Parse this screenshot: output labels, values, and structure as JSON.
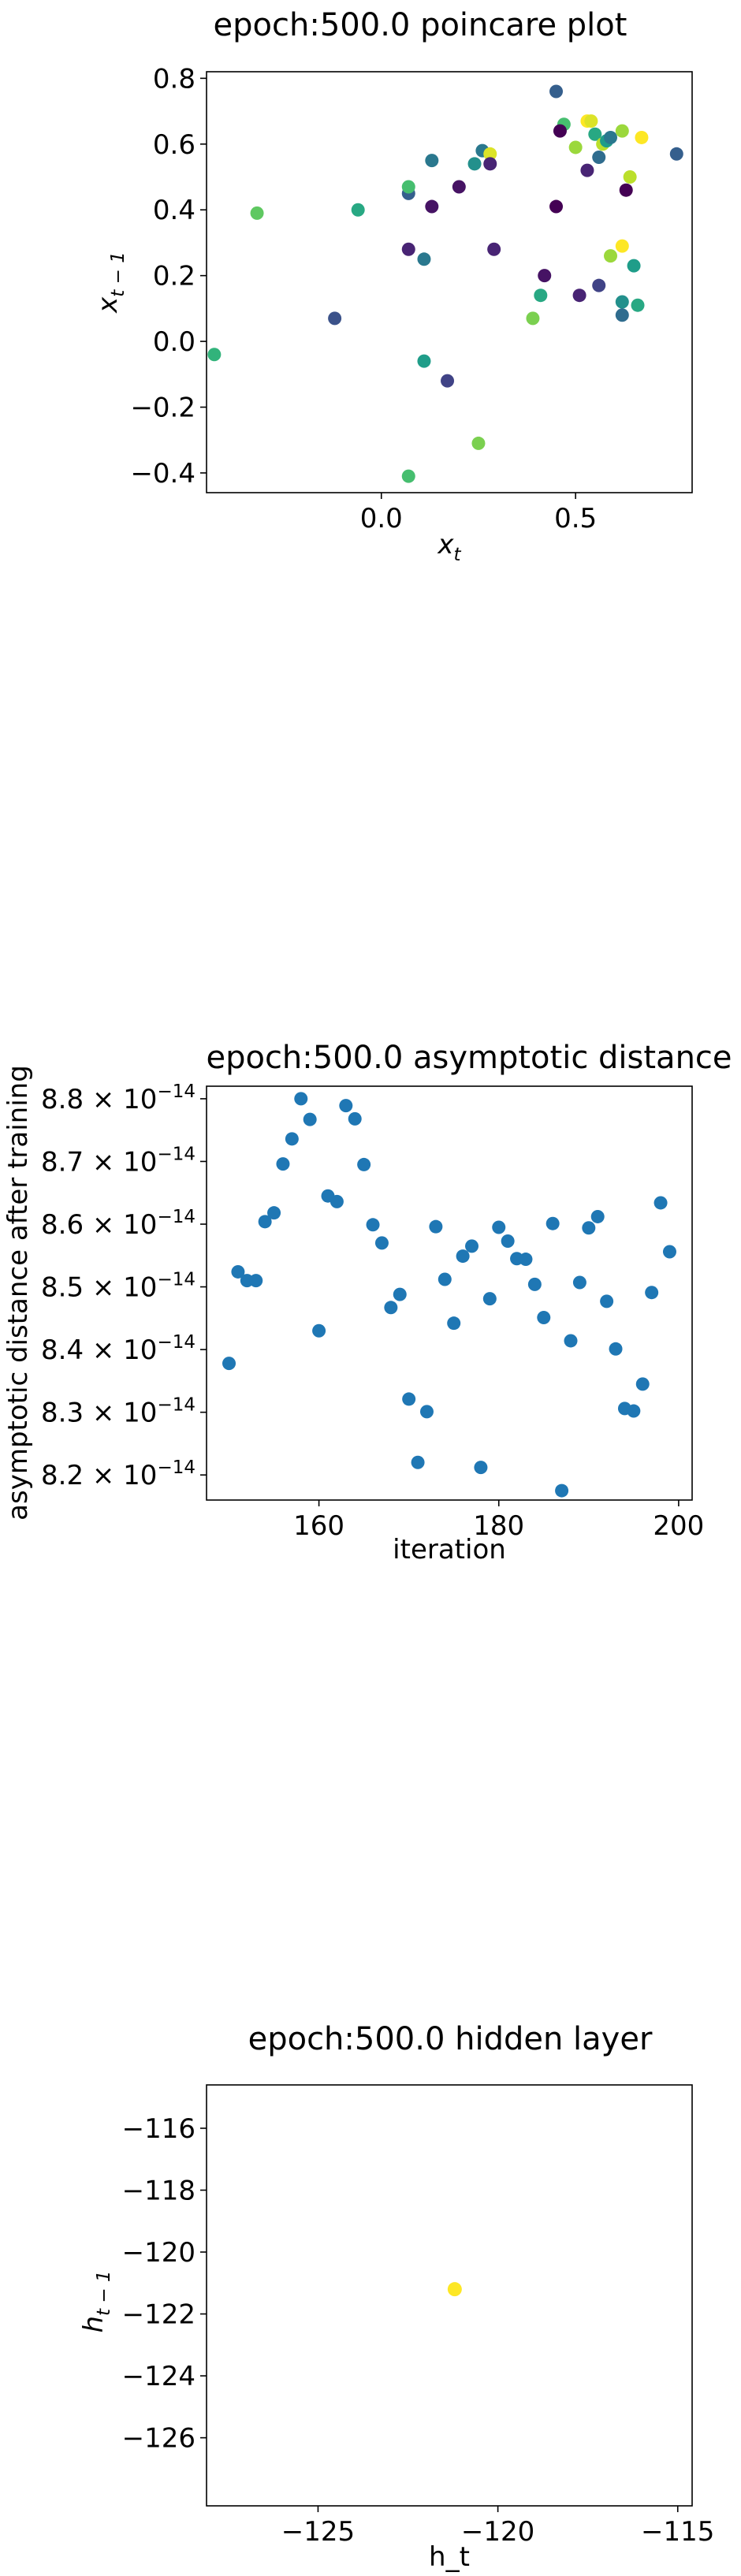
{
  "chart_data": [
    {
      "type": "scatter",
      "title": "epoch:500.0 poincare plot",
      "xlabel": "x_t",
      "ylabel": "x_{t-1}",
      "xlim": [
        -0.45,
        0.8
      ],
      "ylim": [
        -0.46,
        0.82
      ],
      "xticks": [
        0.0,
        0.5
      ],
      "xtick_labels": [
        "0.0",
        "0.5"
      ],
      "yticks": [
        -0.4,
        -0.2,
        0.0,
        0.2,
        0.4,
        0.6,
        0.8
      ],
      "ytick_labels": [
        "−0.4",
        "−0.2",
        "0.0",
        "0.2",
        "0.4",
        "0.6",
        "0.8"
      ],
      "colormap": "viridis",
      "points": [
        {
          "x": 0.45,
          "y": 0.76,
          "c": 0.3
        },
        {
          "x": 0.47,
          "y": 0.66,
          "c": 0.7
        },
        {
          "x": 0.46,
          "y": 0.64,
          "c": 0.0
        },
        {
          "x": 0.5,
          "y": 0.59,
          "c": 0.85
        },
        {
          "x": 0.53,
          "y": 0.67,
          "c": 1.0
        },
        {
          "x": 0.54,
          "y": 0.67,
          "c": 0.95
        },
        {
          "x": 0.55,
          "y": 0.63,
          "c": 0.6
        },
        {
          "x": 0.57,
          "y": 0.6,
          "c": 0.9
        },
        {
          "x": 0.58,
          "y": 0.61,
          "c": 0.55
        },
        {
          "x": 0.59,
          "y": 0.62,
          "c": 0.4
        },
        {
          "x": 0.62,
          "y": 0.64,
          "c": 0.85
        },
        {
          "x": 0.67,
          "y": 0.62,
          "c": 1.0
        },
        {
          "x": 0.76,
          "y": 0.57,
          "c": 0.3
        },
        {
          "x": 0.56,
          "y": 0.56,
          "c": 0.35
        },
        {
          "x": 0.53,
          "y": 0.52,
          "c": 0.1
        },
        {
          "x": 0.64,
          "y": 0.5,
          "c": 0.9
        },
        {
          "x": 0.45,
          "y": 0.41,
          "c": 0.0
        },
        {
          "x": 0.63,
          "y": 0.46,
          "c": 0.0
        },
        {
          "x": 0.26,
          "y": 0.58,
          "c": 0.4
        },
        {
          "x": 0.28,
          "y": 0.57,
          "c": 0.95
        },
        {
          "x": 0.24,
          "y": 0.54,
          "c": 0.5
        },
        {
          "x": 0.28,
          "y": 0.54,
          "c": 0.1
        },
        {
          "x": 0.13,
          "y": 0.55,
          "c": 0.4
        },
        {
          "x": 0.2,
          "y": 0.47,
          "c": 0.05
        },
        {
          "x": 0.07,
          "y": 0.45,
          "c": 0.3
        },
        {
          "x": 0.13,
          "y": 0.41,
          "c": 0.05
        },
        {
          "x": 0.07,
          "y": 0.47,
          "c": 0.7
        },
        {
          "x": -0.06,
          "y": 0.4,
          "c": 0.6
        },
        {
          "x": -0.32,
          "y": 0.39,
          "c": 0.75
        },
        {
          "x": 0.07,
          "y": 0.28,
          "c": 0.1
        },
        {
          "x": 0.11,
          "y": 0.25,
          "c": 0.4
        },
        {
          "x": 0.29,
          "y": 0.28,
          "c": 0.1
        },
        {
          "x": 0.42,
          "y": 0.2,
          "c": 0.05
        },
        {
          "x": 0.56,
          "y": 0.17,
          "c": 0.2
        },
        {
          "x": 0.59,
          "y": 0.26,
          "c": 0.85
        },
        {
          "x": 0.62,
          "y": 0.29,
          "c": 1.0
        },
        {
          "x": 0.65,
          "y": 0.23,
          "c": 0.55
        },
        {
          "x": 0.41,
          "y": 0.14,
          "c": 0.6
        },
        {
          "x": 0.51,
          "y": 0.14,
          "c": 0.1
        },
        {
          "x": 0.62,
          "y": 0.12,
          "c": 0.5
        },
        {
          "x": 0.66,
          "y": 0.11,
          "c": 0.6
        },
        {
          "x": 0.39,
          "y": 0.07,
          "c": 0.8
        },
        {
          "x": 0.62,
          "y": 0.08,
          "c": 0.35
        },
        {
          "x": -0.12,
          "y": 0.07,
          "c": 0.25
        },
        {
          "x": -0.43,
          "y": -0.04,
          "c": 0.65
        },
        {
          "x": 0.11,
          "y": -0.06,
          "c": 0.55
        },
        {
          "x": 0.17,
          "y": -0.12,
          "c": 0.2
        },
        {
          "x": 0.25,
          "y": -0.31,
          "c": 0.8
        },
        {
          "x": 0.07,
          "y": -0.41,
          "c": 0.7
        }
      ]
    },
    {
      "type": "scatter",
      "title": "epoch:500.0 asymptotic distance",
      "xlabel": "iteration",
      "ylabel": "asymptotic distance after training",
      "xlim": [
        147.5,
        201.5
      ],
      "ylim": [
        8.16e-14,
        8.82e-14
      ],
      "xticks": [
        160,
        180,
        200
      ],
      "xtick_labels": [
        "160",
        "180",
        "200"
      ],
      "yticks": [
        8.2e-14,
        8.3e-14,
        8.4e-14,
        8.5e-14,
        8.6e-14,
        8.7e-14,
        8.8e-14
      ],
      "ytick_mantissas": [
        "8.2",
        "8.3",
        "8.4",
        "8.5",
        "8.6",
        "8.7",
        "8.8"
      ],
      "ytick_base": "10",
      "ytick_exponent": "−14",
      "color": "#1f77b4",
      "x": [
        150,
        151,
        152,
        153,
        154,
        155,
        156,
        157,
        158,
        159,
        160,
        161,
        162,
        163,
        164,
        165,
        166,
        167,
        168,
        169,
        170,
        171,
        172,
        173,
        174,
        175,
        176,
        177,
        178,
        179,
        180,
        181,
        182,
        183,
        184,
        185,
        186,
        187,
        188,
        189,
        190,
        191,
        192,
        193,
        194,
        195,
        196,
        197,
        198,
        199
      ],
      "y": [
        8.378e-14,
        8.524e-14,
        8.51e-14,
        8.51e-14,
        8.604e-14,
        8.618e-14,
        8.696e-14,
        8.736e-14,
        8.8e-14,
        8.767e-14,
        8.43e-14,
        8.645e-14,
        8.636e-14,
        8.789e-14,
        8.768e-14,
        8.695e-14,
        8.599e-14,
        8.57e-14,
        8.467e-14,
        8.488e-14,
        8.321e-14,
        8.22e-14,
        8.301e-14,
        8.596e-14,
        8.512e-14,
        8.442e-14,
        8.549e-14,
        8.565e-14,
        8.212e-14,
        8.481e-14,
        8.595e-14,
        8.573e-14,
        8.545e-14,
        8.544e-14,
        8.504e-14,
        8.451e-14,
        8.601e-14,
        8.175e-14,
        8.414e-14,
        8.507e-14,
        8.594e-14,
        8.612e-14,
        8.477e-14,
        8.401e-14,
        8.306e-14,
        8.302e-14,
        8.345e-14,
        8.491e-14,
        8.634e-14,
        8.556e-14
      ]
    },
    {
      "type": "scatter",
      "title": "epoch:500.0 hidden layer",
      "xlabel": "h_t",
      "ylabel": "h_{t-1}",
      "xlim": [
        -128.1,
        -114.6
      ],
      "ylim": [
        -128.2,
        -114.6
      ],
      "xticks": [
        -125,
        -120,
        -115
      ],
      "xtick_labels": [
        "−125",
        "−120",
        "−115"
      ],
      "yticks": [
        -126,
        -124,
        -122,
        -120,
        -118,
        -116
      ],
      "ytick_labels": [
        "−126",
        "−124",
        "−122",
        "−120",
        "−118",
        "−116"
      ],
      "color": "#fde725",
      "points": [
        {
          "x": -121.2,
          "y": -121.2
        }
      ]
    }
  ]
}
